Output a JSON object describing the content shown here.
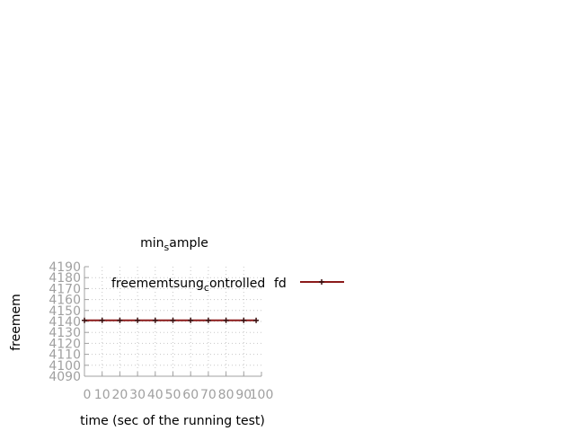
{
  "chart_data": {
    "type": "line",
    "title": {
      "base": "min",
      "sub": "s",
      "rest": "ample"
    },
    "xlabel": "time (sec of the running test)",
    "ylabel": "freemem",
    "xlim": [
      0,
      100
    ],
    "ylim": [
      4090,
      4190
    ],
    "x_ticks": [
      "0",
      "10",
      "20",
      "30",
      "40",
      "50",
      "60",
      "70",
      "80",
      "90",
      "100"
    ],
    "y_ticks": [
      "4090",
      "4100",
      "4110",
      "4120",
      "4130",
      "4140",
      "4150",
      "4160",
      "4170",
      "4180",
      "4190"
    ],
    "grid": true,
    "legend_position": "top-right",
    "series": [
      {
        "name": "freememtsung_controlled",
        "legend_parts": {
          "before": "freememtsung",
          "sub": "c",
          "after": "ontrolled",
          "overlap": "fd"
        },
        "color": "#8b1a1a",
        "marker_color": "#3a1010",
        "x": [
          0,
          10,
          20,
          30,
          40,
          50,
          60,
          70,
          80,
          90,
          97
        ],
        "y": [
          4141,
          4141,
          4141,
          4141,
          4141,
          4141,
          4141,
          4141,
          4141,
          4141,
          4141
        ]
      }
    ]
  }
}
